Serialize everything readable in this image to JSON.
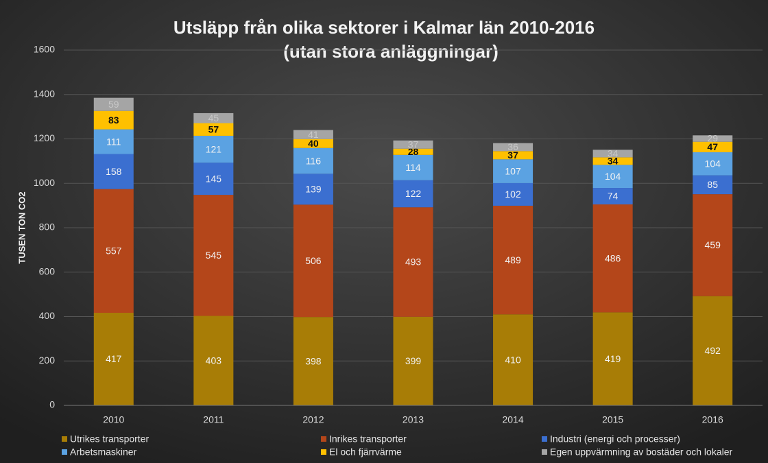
{
  "chart_data": {
    "type": "stacked_bar",
    "title": "Utsläpp från olika sektorer i Kalmar län 2010-2016",
    "subtitle": "(utan stora anläggningar)",
    "y_label": "TUSEN TON CO2",
    "categories": [
      "2010",
      "2011",
      "2012",
      "2013",
      "2014",
      "2015",
      "2016"
    ],
    "series": [
      {
        "name": "Utrikes transporter",
        "color": "#a87d06",
        "label_color": "#f2f2f2",
        "values": [
          417,
          403,
          398,
          399,
          410,
          419,
          492
        ]
      },
      {
        "name": "Inrikes transporter",
        "color": "#b4461a",
        "label_color": "#f2f2f2",
        "values": [
          557,
          545,
          506,
          493,
          489,
          486,
          459
        ]
      },
      {
        "name": "Industri (energi och processer)",
        "color": "#3b6fd0",
        "label_color": "#f2f2f2",
        "values": [
          158,
          145,
          139,
          122,
          102,
          74,
          85
        ]
      },
      {
        "name": "Arbetsmaskiner",
        "color": "#5ba2e2",
        "label_color": "#f2f2f2",
        "values": [
          111,
          121,
          116,
          114,
          107,
          104,
          104
        ]
      },
      {
        "name": "El och fjärrvärme",
        "color": "#ffc000",
        "label_color": "#111111",
        "values": [
          83,
          57,
          40,
          28,
          37,
          34,
          47
        ]
      },
      {
        "name": "Egen uppvärmning av bostäder och lokaler",
        "color": "#a5a5a5",
        "label_color": "#c8c8c8",
        "values": [
          59,
          45,
          41,
          37,
          36,
          34,
          29
        ]
      }
    ],
    "ylim": [
      0,
      1600
    ],
    "yticks": [
      0,
      200,
      400,
      600,
      800,
      1000,
      1200,
      1400,
      1600
    ],
    "grid": true
  }
}
